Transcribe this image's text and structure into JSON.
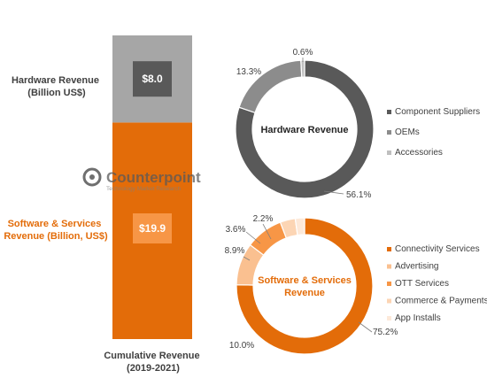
{
  "chart_data": [
    {
      "type": "bar",
      "stacked": true,
      "categories": [
        "Cumulative Revenue (2019-2021)"
      ],
      "xlabel": [
        "Cumulative Revenue",
        "(2019-2021)"
      ],
      "series": [
        {
          "name": "Software & Services Revenue (Billion, US$)",
          "label_lines": [
            "Software & Services",
            "Revenue (Billion, US$)"
          ],
          "values": [
            19.9
          ],
          "value_label": "$19.9",
          "color": "#e36c09",
          "badge_color": "#f79646"
        },
        {
          "name": "Hardware Revenue (Billion US$)",
          "label_lines": [
            "Hardware Revenue",
            "(Billion US$)"
          ],
          "values": [
            8.0
          ],
          "value_label": "$8.0",
          "color": "#a6a6a6",
          "badge_color": "#595959"
        }
      ]
    },
    {
      "type": "pie",
      "donut": true,
      "center_label": [
        "Hardware Revenue"
      ],
      "slices": [
        {
          "label": "Component Suppliers",
          "value": 56.1,
          "value_label": "56.1%",
          "color": "#595959"
        },
        {
          "label": "OEMs",
          "value": 13.3,
          "value_label": "13.3%",
          "color": "#8c8c8c"
        },
        {
          "label": "Accessories",
          "value": 0.6,
          "value_label": "0.6%",
          "color": "#bfbfbf"
        }
      ]
    },
    {
      "type": "pie",
      "donut": true,
      "center_label": [
        "Software & Services",
        "Revenue"
      ],
      "slices": [
        {
          "label": "Connectivity Services",
          "value": 75.2,
          "value_label": "75.2%",
          "color": "#e36c09"
        },
        {
          "label": "Advertising",
          "value": 10.0,
          "value_label": "10.0%",
          "color": "#fac090"
        },
        {
          "label": "OTT Services",
          "value": 8.9,
          "value_label": "8.9%",
          "color": "#f79646"
        },
        {
          "label": "Commerce & Payments",
          "value": 3.6,
          "value_label": "3.6%",
          "color": "#fcd5b4"
        },
        {
          "label": "App Installs",
          "value": 2.2,
          "value_label": "2.2%",
          "color": "#fde9d9"
        }
      ]
    }
  ],
  "logo": {
    "text": "Counterpoint",
    "tagline": "Technology Market Research"
  }
}
